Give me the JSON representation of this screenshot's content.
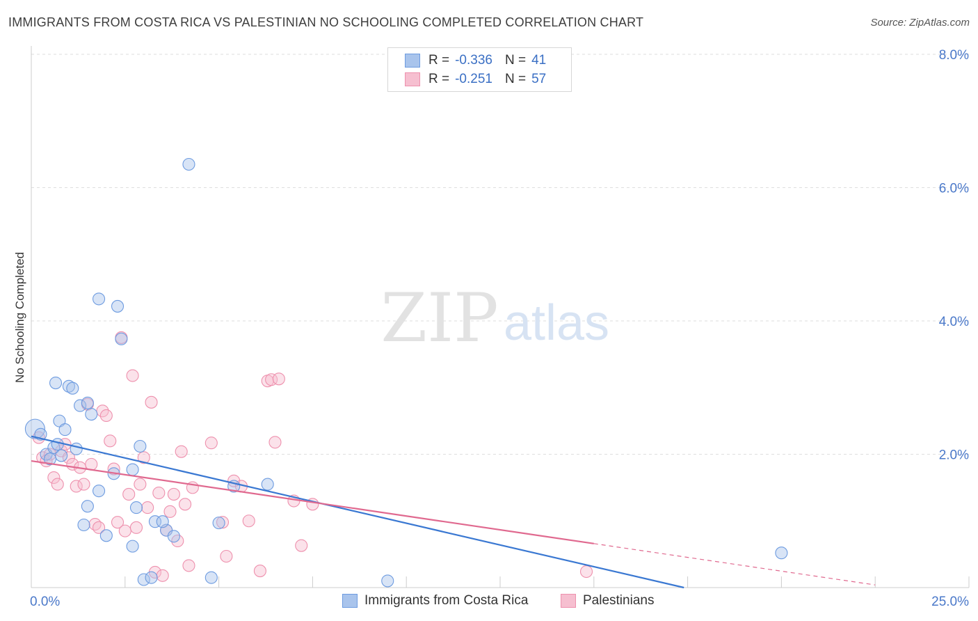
{
  "title": "IMMIGRANTS FROM COSTA RICA VS PALESTINIAN NO SCHOOLING COMPLETED CORRELATION CHART",
  "source": "Source: ZipAtlas.com",
  "watermark": {
    "zip": "ZIP",
    "atlas": "atlas"
  },
  "legend": {
    "rows": [
      {
        "r_label": "R =",
        "r_value": "-0.336",
        "n_label": "N =",
        "n_value": "41",
        "color": "#a9c4ec",
        "border": "#6d9be0"
      },
      {
        "r_label": "R =",
        "r_value": "-0.251",
        "n_label": "N =",
        "n_value": "57",
        "color": "#f6bfd0",
        "border": "#ee90ad"
      }
    ]
  },
  "bottom_legend": [
    {
      "label": "Immigrants from Costa Rica",
      "color": "#a9c4ec",
      "border": "#6d9be0"
    },
    {
      "label": "Palestinians",
      "color": "#f6bfd0",
      "border": "#ee90ad"
    }
  ],
  "colors": {
    "blue": "#4f86d8",
    "blue_line": "#3a78d2",
    "pink": "#ee90ad",
    "pink_line": "#e0698f",
    "axis_text": "#4a78c9"
  },
  "chart_data": {
    "type": "scatter",
    "title": "IMMIGRANTS FROM COSTA RICA VS PALESTINIAN NO SCHOOLING COMPLETED CORRELATION CHART",
    "xlabel": "",
    "ylabel": "No Schooling Completed",
    "xlim": [
      0,
      25
    ],
    "ylim": [
      0,
      8
    ],
    "x_tick_labels": [
      {
        "value": 0,
        "label": "0.0%"
      },
      {
        "value": 25,
        "label": "25.0%"
      }
    ],
    "y_tick_labels": [
      {
        "value": 2,
        "label": "2.0%"
      },
      {
        "value": 4,
        "label": "4.0%"
      },
      {
        "value": 6,
        "label": "6.0%"
      },
      {
        "value": 8,
        "label": "8.0%"
      }
    ],
    "series": [
      {
        "name": "Immigrants from Costa Rica",
        "r": -0.336,
        "n": 41,
        "trend": {
          "x0": 0,
          "y0": 2.27,
          "x1": 17.4,
          "y1": 0.0,
          "dash_to_x": 17.4
        },
        "points": [
          [
            0.1,
            2.38
          ],
          [
            0.25,
            2.3
          ],
          [
            0.4,
            2.0
          ],
          [
            0.5,
            1.93
          ],
          [
            0.6,
            2.1
          ],
          [
            0.7,
            2.15
          ],
          [
            0.8,
            1.98
          ],
          [
            0.65,
            3.07
          ],
          [
            0.75,
            2.5
          ],
          [
            1.0,
            3.02
          ],
          [
            1.1,
            2.99
          ],
          [
            1.3,
            2.73
          ],
          [
            0.9,
            2.37
          ],
          [
            1.6,
            2.6
          ],
          [
            1.5,
            2.77
          ],
          [
            1.2,
            2.08
          ],
          [
            1.8,
            4.33
          ],
          [
            2.3,
            4.22
          ],
          [
            2.4,
            3.73
          ],
          [
            2.2,
            1.71
          ],
          [
            2.7,
            1.77
          ],
          [
            2.9,
            2.12
          ],
          [
            1.5,
            1.22
          ],
          [
            1.8,
            1.45
          ],
          [
            1.4,
            0.94
          ],
          [
            2.0,
            0.78
          ],
          [
            2.7,
            0.62
          ],
          [
            3.3,
            0.99
          ],
          [
            3.6,
            0.86
          ],
          [
            3.8,
            0.77
          ],
          [
            2.8,
            1.2
          ],
          [
            3.5,
            0.99
          ],
          [
            3.0,
            0.12
          ],
          [
            3.2,
            0.15
          ],
          [
            4.2,
            6.35
          ],
          [
            4.8,
            0.15
          ],
          [
            5.0,
            0.97
          ],
          [
            5.4,
            1.52
          ],
          [
            6.3,
            1.55
          ],
          [
            9.5,
            0.1
          ],
          [
            20.0,
            0.52
          ]
        ]
      },
      {
        "name": "Palestinians",
        "r": -0.251,
        "n": 57,
        "trend": {
          "x0": 0,
          "y0": 1.9,
          "x1": 15.0,
          "y1": 0.66,
          "dash_to_x": 22.5
        },
        "points": [
          [
            0.2,
            2.25
          ],
          [
            0.3,
            1.95
          ],
          [
            0.4,
            1.9
          ],
          [
            0.5,
            2.0
          ],
          [
            0.6,
            1.65
          ],
          [
            0.7,
            1.55
          ],
          [
            0.8,
            2.05
          ],
          [
            0.9,
            2.15
          ],
          [
            1.0,
            1.95
          ],
          [
            1.1,
            1.85
          ],
          [
            1.2,
            1.52
          ],
          [
            1.3,
            1.8
          ],
          [
            1.4,
            1.55
          ],
          [
            1.5,
            2.75
          ],
          [
            1.6,
            1.85
          ],
          [
            1.7,
            0.95
          ],
          [
            1.8,
            0.9
          ],
          [
            1.9,
            2.65
          ],
          [
            2.0,
            2.58
          ],
          [
            2.1,
            2.2
          ],
          [
            2.2,
            1.78
          ],
          [
            2.3,
            0.98
          ],
          [
            2.4,
            3.75
          ],
          [
            2.5,
            0.85
          ],
          [
            2.6,
            1.4
          ],
          [
            2.7,
            3.18
          ],
          [
            2.8,
            0.9
          ],
          [
            2.9,
            1.55
          ],
          [
            3.0,
            1.95
          ],
          [
            3.1,
            1.2
          ],
          [
            3.2,
            2.78
          ],
          [
            3.3,
            0.23
          ],
          [
            3.4,
            1.42
          ],
          [
            3.5,
            0.18
          ],
          [
            3.6,
            0.86
          ],
          [
            3.7,
            1.14
          ],
          [
            3.8,
            1.4
          ],
          [
            3.9,
            0.7
          ],
          [
            4.0,
            2.04
          ],
          [
            4.1,
            1.25
          ],
          [
            4.2,
            0.33
          ],
          [
            4.3,
            1.5
          ],
          [
            4.8,
            2.17
          ],
          [
            5.1,
            0.98
          ],
          [
            5.2,
            0.47
          ],
          [
            5.4,
            1.6
          ],
          [
            5.6,
            1.52
          ],
          [
            5.8,
            1.0
          ],
          [
            6.1,
            0.25
          ],
          [
            6.3,
            3.1
          ],
          [
            6.4,
            3.12
          ],
          [
            6.5,
            2.18
          ],
          [
            6.6,
            3.13
          ],
          [
            7.0,
            1.3
          ],
          [
            7.2,
            0.63
          ],
          [
            7.5,
            1.25
          ],
          [
            14.8,
            0.24
          ]
        ]
      }
    ]
  }
}
